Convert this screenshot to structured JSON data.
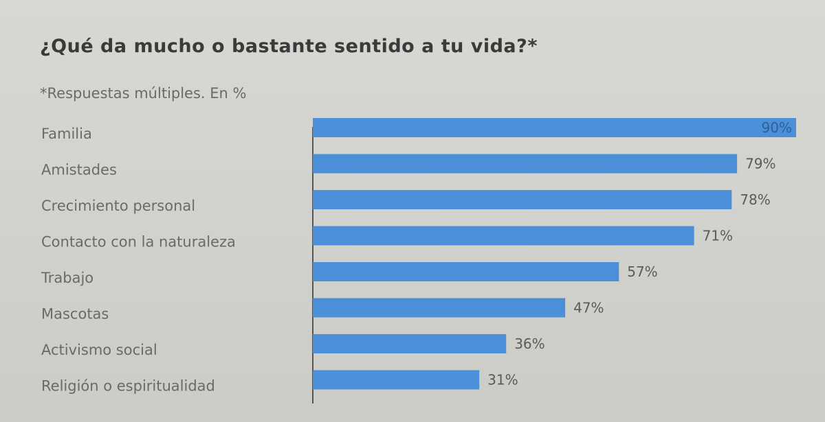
{
  "chart_data": {
    "type": "bar",
    "orientation": "horizontal",
    "title": "¿Qué da mucho o bastante sentido a tu vida?*",
    "subtitle": "*Respuestas múltiples. En %",
    "categories": [
      "Familia",
      "Amistades",
      "Crecimiento personal",
      "Contacto con la naturaleza",
      "Trabajo",
      "Mascotas",
      "Activismo social",
      "Religión o espiritualidad"
    ],
    "values": [
      90,
      79,
      78,
      71,
      57,
      47,
      36,
      31
    ],
    "value_labels": [
      "90%",
      "79%",
      "78%",
      "71%",
      "57%",
      "47%",
      "36%",
      "31%"
    ],
    "xlim": [
      0,
      90
    ],
    "grid": false,
    "legend": "none",
    "bar_color": "#4a8fd8"
  }
}
